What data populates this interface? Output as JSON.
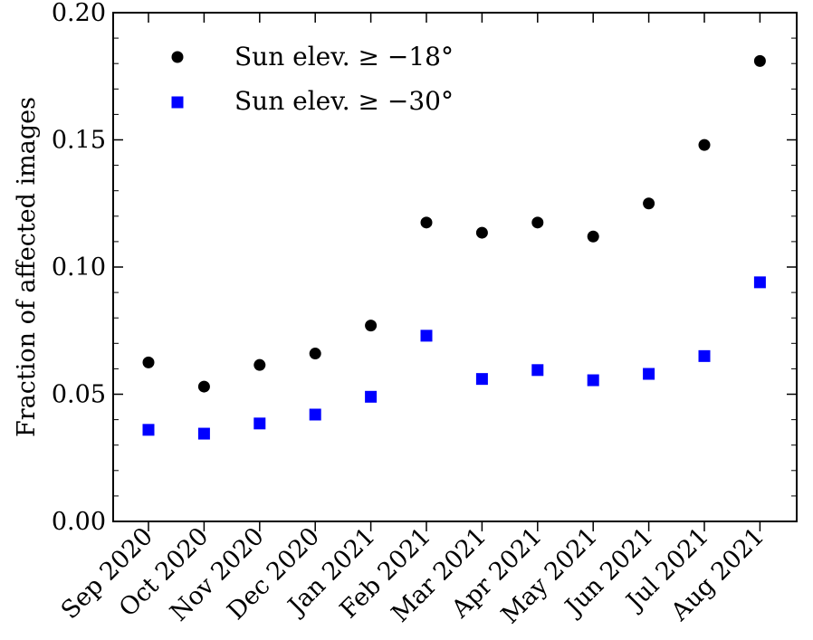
{
  "chart_data": {
    "type": "scatter",
    "title": "",
    "xlabel": "",
    "ylabel": "Fraction of affected images",
    "categories": [
      "Sep 2020",
      "Oct 2020",
      "Nov 2020",
      "Dec 2020",
      "Jan 2021",
      "Feb 2021",
      "Mar 2021",
      "Apr 2021",
      "May 2021",
      "Jun 2021",
      "Jul 2021",
      "Aug 2021"
    ],
    "ylim": [
      0.0,
      0.2
    ],
    "yticks": [
      "0.00",
      "0.05",
      "0.10",
      "0.15",
      "0.20"
    ],
    "grid": false,
    "legend_position": "top-left",
    "series": [
      {
        "name": "Sun elev. ≥ −18°",
        "marker": "circle",
        "color": "#000000",
        "values": [
          0.0625,
          0.053,
          0.0615,
          0.066,
          0.077,
          0.1175,
          0.1135,
          0.1175,
          0.112,
          0.125,
          0.148,
          0.181
        ]
      },
      {
        "name": "Sun elev. ≥ −30°",
        "marker": "square",
        "color": "#0000ff",
        "values": [
          0.036,
          0.0345,
          0.0385,
          0.042,
          0.049,
          0.073,
          0.056,
          0.0595,
          0.0555,
          0.058,
          0.065,
          0.094
        ]
      }
    ]
  }
}
